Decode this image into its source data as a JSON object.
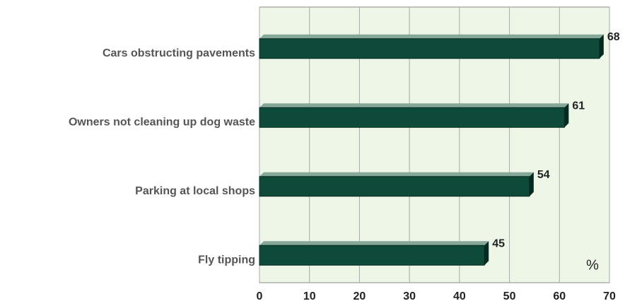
{
  "chart_data": {
    "type": "barh",
    "categories": [
      "Cars obstructing pavements",
      "Owners not cleaning up dog waste",
      "Parking at local shops",
      "Fly tipping"
    ],
    "values": [
      68,
      61,
      54,
      45
    ],
    "color": "#0e4a38",
    "annotation": "%",
    "xlim": [
      0,
      70
    ],
    "xticks": [
      0,
      10,
      20,
      30,
      40,
      50,
      60,
      70
    ],
    "grid": true
  }
}
